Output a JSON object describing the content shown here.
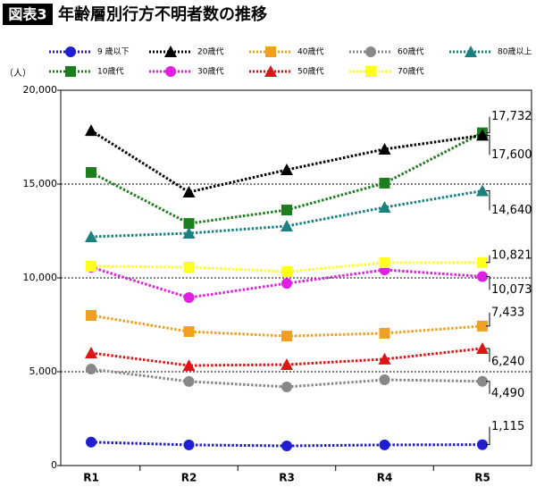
{
  "chart_data": {
    "type": "line",
    "badge": "図表3",
    "title": "年齢層別行方不明者数の推移",
    "y_unit": "（人）",
    "categories": [
      "R1",
      "R2",
      "R3",
      "R4",
      "R5"
    ],
    "ylim": [
      0,
      20000
    ],
    "yticks": [
      0,
      {
        "value": 5000,
        "label": "5,000"
      },
      {
        "value": 10000,
        "label": "10,000"
      },
      {
        "value": 15000,
        "label": "15,000"
      },
      {
        "value": 20000,
        "label": "20,000"
      }
    ],
    "grid": true,
    "series": [
      {
        "name": "9 歳以下",
        "color": "#1f1fd0",
        "marker": "circle",
        "values": [
          1250,
          1100,
          1050,
          1100,
          1115
        ],
        "value_labels": [
          null,
          null,
          null,
          null,
          "1,115"
        ]
      },
      {
        "name": "10歳代",
        "color": "#1e7d1e",
        "marker": "square",
        "values": [
          15620,
          12900,
          13620,
          15050,
          17732
        ],
        "value_labels": [
          null,
          null,
          null,
          null,
          "17,732"
        ]
      },
      {
        "name": "20歳代",
        "color": "#000000",
        "marker": "triangle",
        "values": [
          17850,
          14570,
          15760,
          16860,
          17600
        ],
        "value_labels": [
          null,
          null,
          null,
          null,
          "17,600"
        ]
      },
      {
        "name": "30歳代",
        "color": "#e020e0",
        "marker": "circle",
        "values": [
          10570,
          8950,
          9710,
          10430,
          10073
        ],
        "value_labels": [
          null,
          null,
          null,
          null,
          "10,073"
        ]
      },
      {
        "name": "40歳代",
        "color": "#f0a020",
        "marker": "square",
        "values": [
          8000,
          7140,
          6900,
          7050,
          7433
        ],
        "value_labels": [
          null,
          null,
          null,
          null,
          "7,433"
        ]
      },
      {
        "name": "50歳代",
        "color": "#e01414",
        "marker": "triangle",
        "values": [
          6000,
          5330,
          5380,
          5670,
          6240
        ],
        "value_labels": [
          null,
          null,
          null,
          null,
          "6,240"
        ]
      },
      {
        "name": "60歳代",
        "color": "#888888",
        "marker": "circle",
        "values": [
          5140,
          4480,
          4190,
          4570,
          4490
        ],
        "value_labels": [
          null,
          null,
          null,
          null,
          "4,490"
        ]
      },
      {
        "name": "70歳代",
        "color": "#ffff20",
        "marker": "square",
        "values": [
          10620,
          10570,
          10330,
          10810,
          10821
        ],
        "value_labels": [
          null,
          null,
          null,
          null,
          "10,821"
        ]
      },
      {
        "name": "80歳以上",
        "color": "#1a8080",
        "marker": "triangle",
        "values": [
          12190,
          12380,
          12760,
          13760,
          14640
        ],
        "value_labels": [
          null,
          null,
          null,
          null,
          "14,640"
        ]
      }
    ]
  }
}
